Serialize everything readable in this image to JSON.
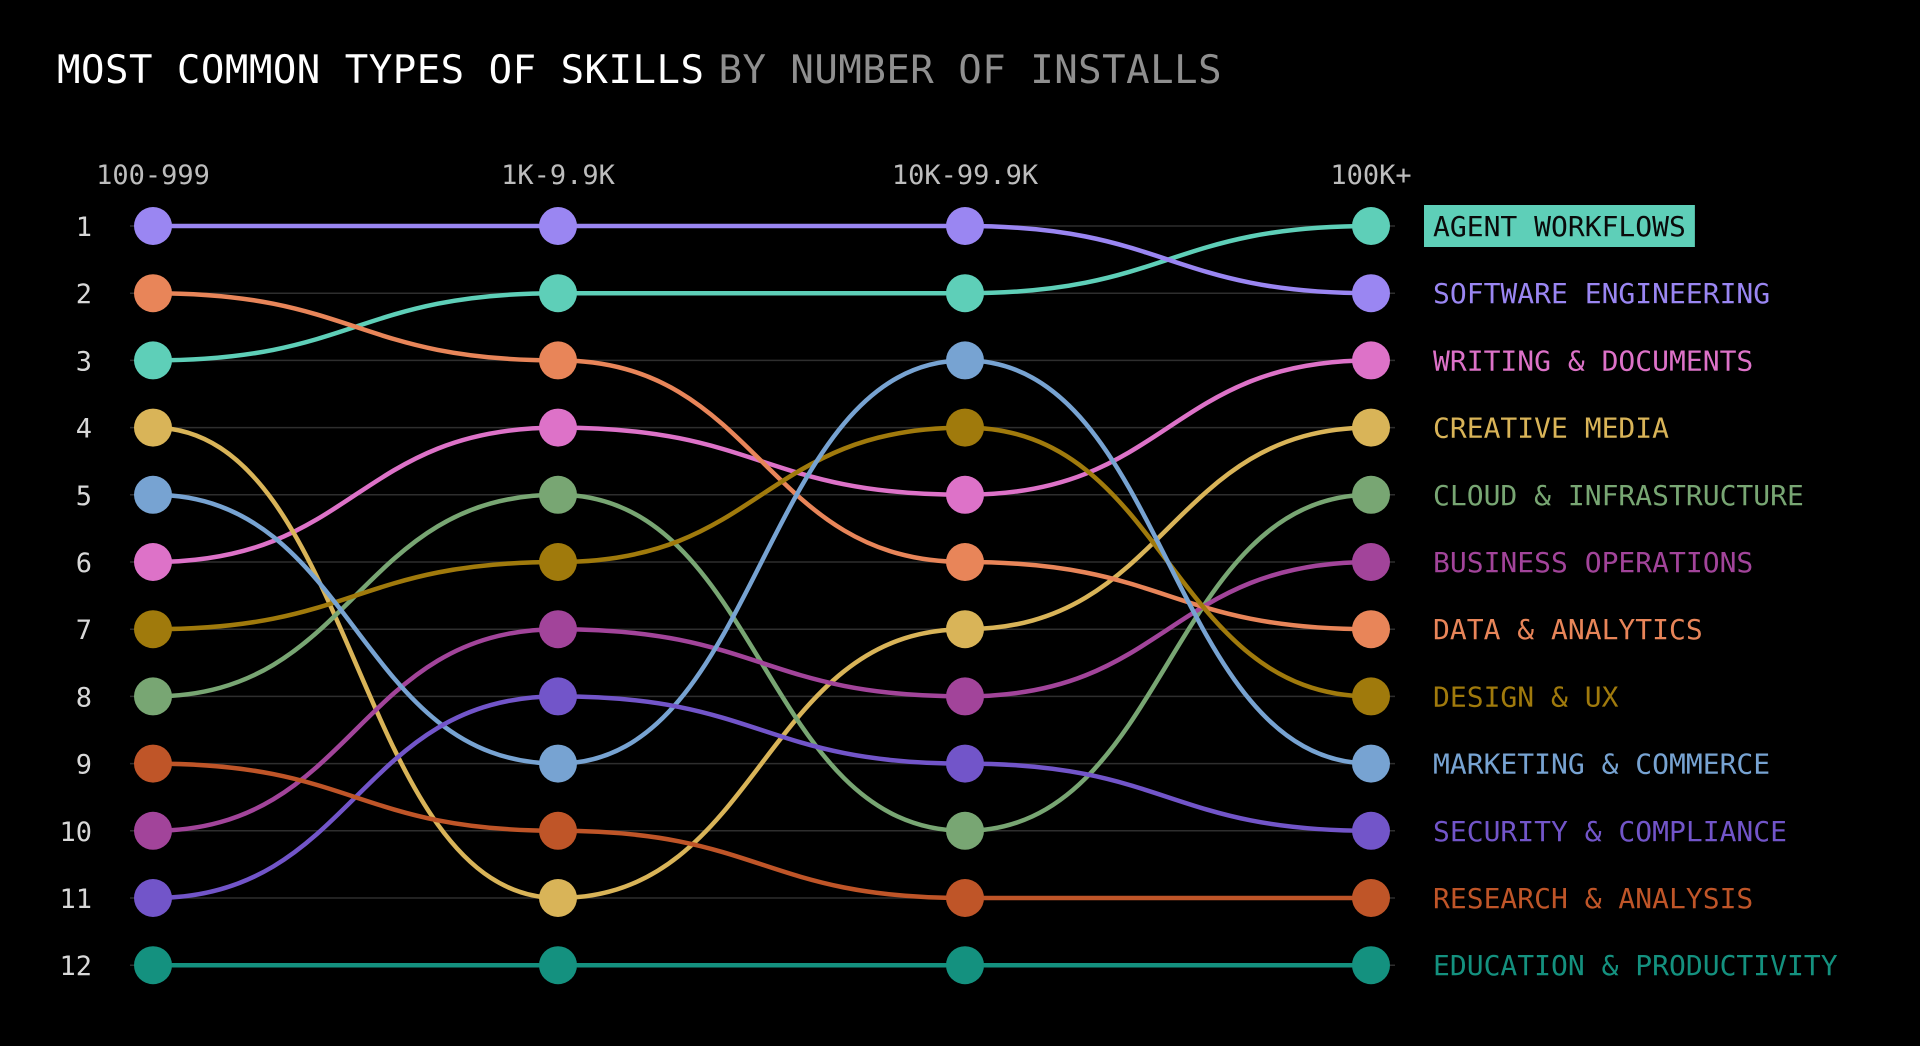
{
  "title": "MOST COMMON TYPES OF SKILLS",
  "subtitle": "BY NUMBER OF INSTALLS",
  "chart_data": {
    "type": "line",
    "subtype": "bump",
    "categories": [
      "100-999",
      "1K-9.9K",
      "10K-99.9K",
      "100K+"
    ],
    "rank_labels": [
      "1",
      "2",
      "3",
      "4",
      "5",
      "6",
      "7",
      "8",
      "9",
      "10",
      "11",
      "12"
    ],
    "y_reversed": true,
    "ylim": [
      1,
      12
    ],
    "grid": true,
    "legend_position": "right",
    "highlight": "AGENT WORKFLOWS",
    "series": [
      {
        "name": "AGENT WORKFLOWS",
        "color": "#5ecfb8",
        "ranks": [
          3,
          2,
          2,
          1
        ]
      },
      {
        "name": "SOFTWARE ENGINEERING",
        "color": "#9a86f2",
        "ranks": [
          1,
          1,
          1,
          2
        ]
      },
      {
        "name": "WRITING & DOCUMENTS",
        "color": "#dd72c8",
        "ranks": [
          6,
          4,
          5,
          3
        ]
      },
      {
        "name": "CREATIVE MEDIA",
        "color": "#d9b458",
        "ranks": [
          4,
          11,
          7,
          4
        ]
      },
      {
        "name": "CLOUD & INFRASTRUCTURE",
        "color": "#78a673",
        "ranks": [
          8,
          5,
          10,
          5
        ]
      },
      {
        "name": "BUSINESS OPERATIONS",
        "color": "#a2449a",
        "ranks": [
          10,
          7,
          8,
          6
        ]
      },
      {
        "name": "DATA & ANALYTICS",
        "color": "#e88559",
        "ranks": [
          2,
          3,
          6,
          7
        ]
      },
      {
        "name": "DESIGN & UX",
        "color": "#a07a0c",
        "ranks": [
          7,
          6,
          4,
          8
        ]
      },
      {
        "name": "MARKETING & COMMERCE",
        "color": "#77a3d2",
        "ranks": [
          5,
          9,
          3,
          9
        ]
      },
      {
        "name": "SECURITY & COMPLIANCE",
        "color": "#7255c9",
        "ranks": [
          11,
          8,
          9,
          10
        ]
      },
      {
        "name": "RESEARCH & ANALYSIS",
        "color": "#bf5528",
        "ranks": [
          9,
          10,
          11,
          11
        ]
      },
      {
        "name": "EDUCATION & PRODUCTIVITY",
        "color": "#14917f",
        "ranks": [
          12,
          12,
          12,
          12
        ]
      }
    ]
  }
}
